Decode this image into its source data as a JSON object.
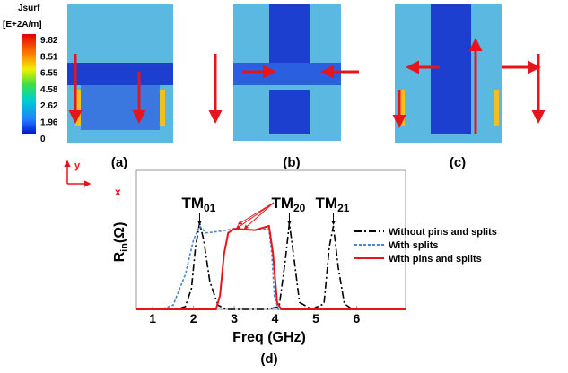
{
  "colorbar": {
    "title": "Jsurf",
    "unit": "[E+2A/m]",
    "ticks": [
      9.82,
      8.51,
      6.55,
      4.58,
      2.62,
      1.96,
      0
    ]
  },
  "panel_labels": [
    "(a)",
    "(b)",
    "(c)"
  ],
  "axes_icon": {
    "y": "y",
    "x": "x"
  },
  "chart_data": {
    "type": "line",
    "xlabel": "Freq (GHz)",
    "ylabel": {
      "text": "R",
      "sub": "in",
      "unit": "(Ω)"
    },
    "caption": "(d)",
    "xlim": [
      0.6,
      7.2
    ],
    "xticks": [
      1,
      2,
      3,
      4,
      5,
      6
    ],
    "ylim": [
      0,
      1
    ],
    "annotations": [
      {
        "text": "TM",
        "sub": "01",
        "x": 2.15
      },
      {
        "text": "TM",
        "sub": "20",
        "x": 4.35
      },
      {
        "text": "TM",
        "sub": "21",
        "x": 5.43
      }
    ],
    "series": [
      {
        "name": "Without pins and splits",
        "color": "#000000",
        "dash": "8 3 2 3",
        "x": [
          0.6,
          1.6,
          1.8,
          1.95,
          2.05,
          2.15,
          2.25,
          2.4,
          2.6,
          2.8,
          3.8,
          4.1,
          4.25,
          4.35,
          4.45,
          4.6,
          4.9,
          5.2,
          5.33,
          5.43,
          5.55,
          5.7,
          5.9,
          7.2
        ],
        "values": [
          0,
          0,
          0.02,
          0.15,
          0.45,
          0.62,
          0.5,
          0.2,
          0.03,
          0,
          0,
          0.02,
          0.35,
          0.62,
          0.4,
          0.05,
          0,
          0.04,
          0.45,
          0.6,
          0.3,
          0.04,
          0,
          0
        ]
      },
      {
        "name": "With splits",
        "color": "#4a86c8",
        "dash": "3 2",
        "x": [
          0.6,
          1.2,
          1.5,
          1.8,
          2.0,
          2.15,
          2.3,
          2.6,
          3.0,
          3.5,
          3.85,
          3.92,
          3.98,
          4.08,
          7.2
        ],
        "values": [
          0,
          0,
          0.03,
          0.25,
          0.5,
          0.6,
          0.55,
          0.56,
          0.58,
          0.57,
          0.58,
          0.4,
          0.1,
          0,
          0
        ]
      },
      {
        "name": "With pins and splits",
        "color": "#e8141c",
        "dash": "",
        "x": [
          0.6,
          2.55,
          2.65,
          2.75,
          2.85,
          3.0,
          3.5,
          3.85,
          3.95,
          4.05,
          4.15,
          7.2
        ],
        "values": [
          0,
          0,
          0.1,
          0.4,
          0.55,
          0.58,
          0.57,
          0.6,
          0.4,
          0.05,
          0,
          0
        ]
      }
    ]
  }
}
